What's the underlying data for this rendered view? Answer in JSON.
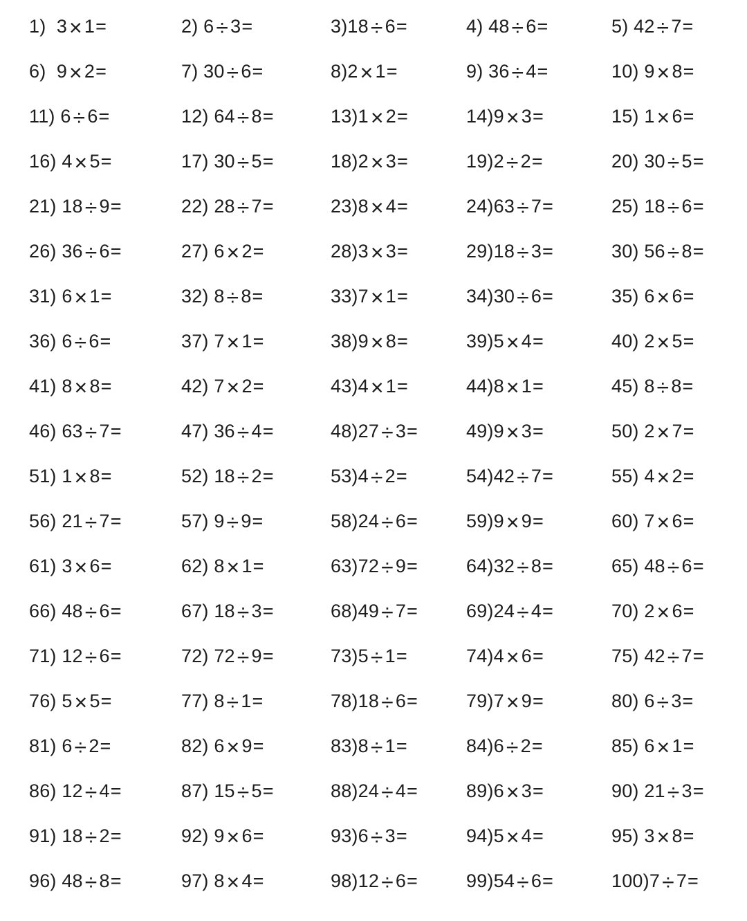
{
  "page": {
    "background_color": "#ffffff",
    "text_color": "#1e1e1e",
    "kind": "math drill worksheet, 100 problems in 5 columns x 20 rows"
  },
  "worksheet": {
    "columns": 5,
    "rows": 20,
    "equals_sign": "=",
    "problems": [
      {
        "n": "1)  ",
        "a": "3",
        "op": "×",
        "b": "1"
      },
      {
        "n": "2) ",
        "a": "6",
        "op": "÷",
        "b": "3"
      },
      {
        "n": "3)",
        "a": "18",
        "op": "÷",
        "b": "6"
      },
      {
        "n": "4) ",
        "a": "48",
        "op": "÷",
        "b": "6"
      },
      {
        "n": "5) ",
        "a": "42",
        "op": "÷",
        "b": "7"
      },
      {
        "n": "6)  ",
        "a": "9",
        "op": "×",
        "b": "2"
      },
      {
        "n": "7) ",
        "a": "30",
        "op": "÷",
        "b": "6"
      },
      {
        "n": "8)",
        "a": "2",
        "op": "×",
        "b": "1"
      },
      {
        "n": "9) ",
        "a": "36",
        "op": "÷",
        "b": "4"
      },
      {
        "n": "10) ",
        "a": "9",
        "op": "×",
        "b": "8"
      },
      {
        "n": "11) ",
        "a": "6",
        "op": "÷",
        "b": "6"
      },
      {
        "n": "12) ",
        "a": "64",
        "op": "÷",
        "b": "8"
      },
      {
        "n": "13)",
        "a": "1",
        "op": "×",
        "b": "2"
      },
      {
        "n": "14)",
        "a": "9",
        "op": "×",
        "b": "3"
      },
      {
        "n": "15) ",
        "a": "1",
        "op": "×",
        "b": "6"
      },
      {
        "n": "16) ",
        "a": "4",
        "op": "×",
        "b": "5"
      },
      {
        "n": "17) ",
        "a": "30",
        "op": "÷",
        "b": "5"
      },
      {
        "n": "18)",
        "a": "2",
        "op": "×",
        "b": "3"
      },
      {
        "n": "19)",
        "a": "2",
        "op": "÷",
        "b": "2"
      },
      {
        "n": "20) ",
        "a": "30",
        "op": "÷",
        "b": "5"
      },
      {
        "n": "21) ",
        "a": "18",
        "op": "÷",
        "b": "9"
      },
      {
        "n": "22) ",
        "a": "28",
        "op": "÷",
        "b": "7"
      },
      {
        "n": "23)",
        "a": "8",
        "op": "×",
        "b": "4"
      },
      {
        "n": "24)",
        "a": "63",
        "op": "÷",
        "b": "7"
      },
      {
        "n": "25) ",
        "a": "18",
        "op": "÷",
        "b": "6"
      },
      {
        "n": "26) ",
        "a": "36",
        "op": "÷",
        "b": "6"
      },
      {
        "n": "27) ",
        "a": "6",
        "op": "×",
        "b": "2"
      },
      {
        "n": "28)",
        "a": "3",
        "op": "×",
        "b": "3"
      },
      {
        "n": "29)",
        "a": "18",
        "op": "÷",
        "b": "3"
      },
      {
        "n": "30) ",
        "a": "56",
        "op": "÷",
        "b": "8"
      },
      {
        "n": "31) ",
        "a": "6",
        "op": "×",
        "b": "1"
      },
      {
        "n": "32) ",
        "a": "8",
        "op": "÷",
        "b": "8"
      },
      {
        "n": "33)",
        "a": "7",
        "op": "×",
        "b": "1"
      },
      {
        "n": "34)",
        "a": "30",
        "op": "÷",
        "b": "6"
      },
      {
        "n": "35) ",
        "a": "6",
        "op": "×",
        "b": "6"
      },
      {
        "n": "36) ",
        "a": "6",
        "op": "÷",
        "b": "6"
      },
      {
        "n": "37) ",
        "a": "7",
        "op": "×",
        "b": "1"
      },
      {
        "n": "38)",
        "a": "9",
        "op": "×",
        "b": "8"
      },
      {
        "n": "39)",
        "a": "5",
        "op": "×",
        "b": "4"
      },
      {
        "n": "40) ",
        "a": "2",
        "op": "×",
        "b": "5"
      },
      {
        "n": "41) ",
        "a": "8",
        "op": "×",
        "b": "8"
      },
      {
        "n": "42) ",
        "a": "7",
        "op": "×",
        "b": "2"
      },
      {
        "n": "43)",
        "a": "4",
        "op": "×",
        "b": "1"
      },
      {
        "n": "44)",
        "a": "8",
        "op": "×",
        "b": "1"
      },
      {
        "n": "45) ",
        "a": "8",
        "op": "÷",
        "b": "8"
      },
      {
        "n": "46) ",
        "a": "63",
        "op": "÷",
        "b": "7"
      },
      {
        "n": "47) ",
        "a": "36",
        "op": "÷",
        "b": "4"
      },
      {
        "n": "48)",
        "a": "27",
        "op": "÷",
        "b": "3"
      },
      {
        "n": "49)",
        "a": "9",
        "op": "×",
        "b": "3"
      },
      {
        "n": "50) ",
        "a": "2",
        "op": "×",
        "b": "7"
      },
      {
        "n": "51) ",
        "a": "1",
        "op": "×",
        "b": "8"
      },
      {
        "n": "52) ",
        "a": "18",
        "op": "÷",
        "b": "2"
      },
      {
        "n": "53)",
        "a": "4",
        "op": "÷",
        "b": "2"
      },
      {
        "n": "54)",
        "a": "42",
        "op": "÷",
        "b": "7"
      },
      {
        "n": "55) ",
        "a": "4",
        "op": "×",
        "b": "2"
      },
      {
        "n": "56) ",
        "a": "21",
        "op": "÷",
        "b": "7"
      },
      {
        "n": "57) ",
        "a": "9",
        "op": "÷",
        "b": "9"
      },
      {
        "n": "58)",
        "a": "24",
        "op": "÷",
        "b": "6"
      },
      {
        "n": "59)",
        "a": "9",
        "op": "×",
        "b": "9"
      },
      {
        "n": "60) ",
        "a": "7",
        "op": "×",
        "b": "6"
      },
      {
        "n": "61) ",
        "a": "3",
        "op": "×",
        "b": "6"
      },
      {
        "n": "62) ",
        "a": "8",
        "op": "×",
        "b": "1"
      },
      {
        "n": "63)",
        "a": "72",
        "op": "÷",
        "b": "9"
      },
      {
        "n": "64)",
        "a": "32",
        "op": "÷",
        "b": "8"
      },
      {
        "n": "65) ",
        "a": "48",
        "op": "÷",
        "b": "6"
      },
      {
        "n": "66) ",
        "a": "48",
        "op": "÷",
        "b": "6"
      },
      {
        "n": "67) ",
        "a": "18",
        "op": "÷",
        "b": "3"
      },
      {
        "n": "68)",
        "a": "49",
        "op": "÷",
        "b": "7"
      },
      {
        "n": "69)",
        "a": "24",
        "op": "÷",
        "b": "4"
      },
      {
        "n": "70) ",
        "a": "2",
        "op": "×",
        "b": "6"
      },
      {
        "n": "71) ",
        "a": "12",
        "op": "÷",
        "b": "6"
      },
      {
        "n": "72) ",
        "a": "72",
        "op": "÷",
        "b": "9"
      },
      {
        "n": "73)",
        "a": "5",
        "op": "÷",
        "b": "1"
      },
      {
        "n": "74)",
        "a": "4",
        "op": "×",
        "b": "6"
      },
      {
        "n": "75) ",
        "a": "42",
        "op": "÷",
        "b": "7"
      },
      {
        "n": "76) ",
        "a": "5",
        "op": "×",
        "b": "5"
      },
      {
        "n": "77) ",
        "a": "8",
        "op": "÷",
        "b": "1"
      },
      {
        "n": "78)",
        "a": "18",
        "op": "÷",
        "b": "6"
      },
      {
        "n": "79)",
        "a": "7",
        "op": "×",
        "b": "9"
      },
      {
        "n": "80) ",
        "a": "6",
        "op": "÷",
        "b": "3"
      },
      {
        "n": "81) ",
        "a": "6",
        "op": "÷",
        "b": "2"
      },
      {
        "n": "82) ",
        "a": "6",
        "op": "×",
        "b": "9"
      },
      {
        "n": "83)",
        "a": "8",
        "op": "÷",
        "b": "1"
      },
      {
        "n": "84)",
        "a": "6",
        "op": "÷",
        "b": "2"
      },
      {
        "n": "85) ",
        "a": "6",
        "op": "×",
        "b": "1"
      },
      {
        "n": "86) ",
        "a": "12",
        "op": "÷",
        "b": "4"
      },
      {
        "n": "87) ",
        "a": "15",
        "op": "÷",
        "b": "5"
      },
      {
        "n": "88)",
        "a": "24",
        "op": "÷",
        "b": "4"
      },
      {
        "n": "89)",
        "a": "6",
        "op": "×",
        "b": "3"
      },
      {
        "n": "90) ",
        "a": "21",
        "op": "÷",
        "b": "3"
      },
      {
        "n": "91) ",
        "a": "18",
        "op": "÷",
        "b": "2"
      },
      {
        "n": "92) ",
        "a": "9",
        "op": "×",
        "b": "6"
      },
      {
        "n": "93)",
        "a": "6",
        "op": "÷",
        "b": "3"
      },
      {
        "n": "94)",
        "a": "5",
        "op": "×",
        "b": "4"
      },
      {
        "n": "95) ",
        "a": "3",
        "op": "×",
        "b": "8"
      },
      {
        "n": "96) ",
        "a": "48",
        "op": "÷",
        "b": "8"
      },
      {
        "n": "97) ",
        "a": "8",
        "op": "×",
        "b": "4"
      },
      {
        "n": "98)",
        "a": "12",
        "op": "÷",
        "b": "6"
      },
      {
        "n": "99)",
        "a": "54",
        "op": "÷",
        "b": "6"
      },
      {
        "n": "100)",
        "a": "7",
        "op": "÷",
        "b": "7"
      }
    ]
  }
}
